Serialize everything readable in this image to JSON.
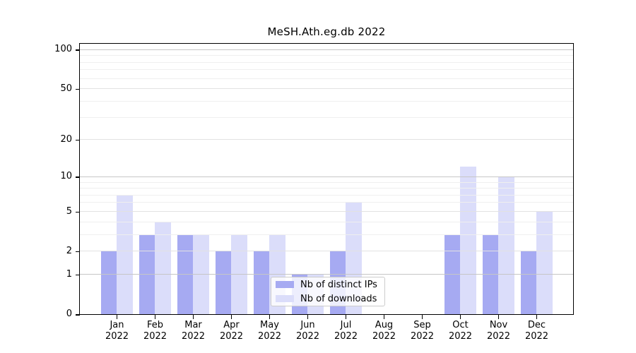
{
  "chart_data": {
    "type": "bar",
    "title": "MeSH.Ath.eg.db 2022",
    "categories": [
      "Jan 2022",
      "Feb 2022",
      "Mar 2022",
      "Apr 2022",
      "May 2022",
      "Jun 2022",
      "Jul 2022",
      "Aug 2022",
      "Sep 2022",
      "Oct 2022",
      "Nov 2022",
      "Dec 2022"
    ],
    "series": [
      {
        "name": "Nb of distinct IPs",
        "color": "#a6aaf2",
        "values": [
          2,
          3,
          3,
          2,
          2,
          1,
          2,
          0,
          0,
          3,
          3,
          2
        ]
      },
      {
        "name": "Nb of downloads",
        "color": "#dbddfa",
        "values": [
          7,
          4,
          3,
          3,
          3,
          1,
          6,
          0,
          0,
          12,
          10,
          5
        ]
      }
    ],
    "xlabel": "",
    "ylabel": "",
    "yscale": "log1p",
    "ylim": [
      0,
      111
    ],
    "yticks": [
      0,
      1,
      2,
      5,
      10,
      20,
      50,
      100
    ],
    "minor_gridlines": [
      3,
      4,
      6,
      7,
      8,
      9,
      30,
      40,
      60,
      70,
      80,
      90
    ],
    "grid": "horizontal",
    "legend": {
      "position": "inside-bottom-center",
      "entries": [
        "Nb of distinct IPs",
        "Nb of downloads"
      ]
    },
    "colors": {
      "bar_distinct_ips": "#a6aaf2",
      "bar_downloads": "#dbddfa",
      "gridline_power10": "#c6c6c6",
      "gridline_major": "#e2e2e2",
      "gridline_minor": "#efefef",
      "axis": "#000000",
      "text": "#000000",
      "background": "#ffffff"
    }
  }
}
